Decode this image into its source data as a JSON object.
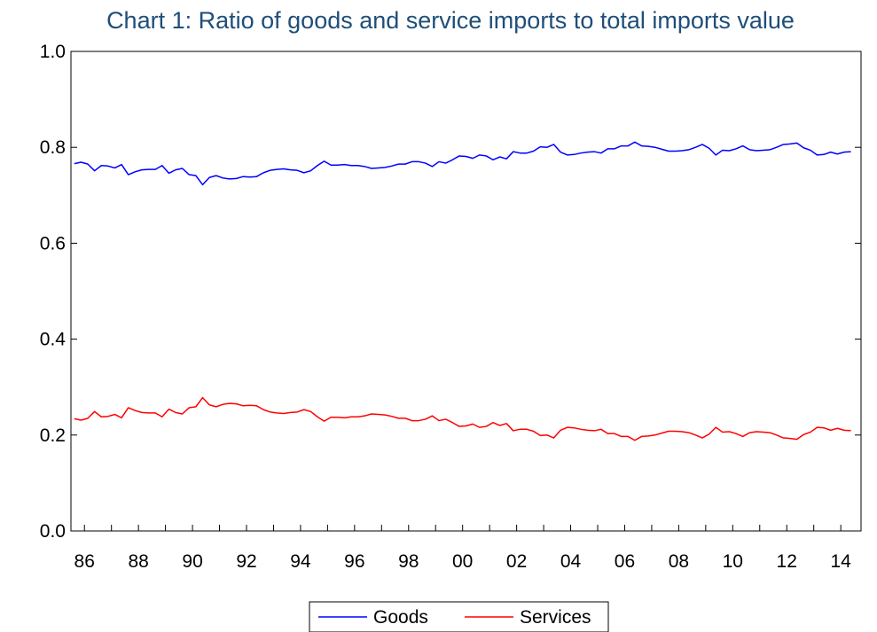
{
  "chart_data": {
    "type": "line",
    "title": "Chart 1: Ratio of goods and service imports to total imports value",
    "xlabel": "",
    "ylabel": "",
    "ylim": [
      0.0,
      1.0
    ],
    "y_ticks": [
      "0.0",
      "0.2",
      "0.4",
      "0.6",
      "0.8",
      "1.0"
    ],
    "y_tick_values": [
      0.0,
      0.2,
      0.4,
      0.6,
      0.8,
      1.0
    ],
    "x_tick_labels": [
      "86",
      "88",
      "90",
      "92",
      "94",
      "96",
      "98",
      "00",
      "02",
      "04",
      "06",
      "08",
      "10",
      "12",
      "14"
    ],
    "x_range": [
      1985.5,
      2014.75
    ],
    "frequency": "quarterly",
    "x_start": "1985Q3",
    "grid": false,
    "legend_position": "bottom-center",
    "series": [
      {
        "name": "Goods",
        "color": "#0000ff",
        "values": [
          0.766,
          0.769,
          0.765,
          0.751,
          0.762,
          0.761,
          0.757,
          0.764,
          0.743,
          0.749,
          0.753,
          0.754,
          0.754,
          0.762,
          0.746,
          0.753,
          0.756,
          0.743,
          0.741,
          0.722,
          0.737,
          0.741,
          0.736,
          0.734,
          0.735,
          0.739,
          0.738,
          0.739,
          0.747,
          0.752,
          0.754,
          0.755,
          0.753,
          0.752,
          0.747,
          0.751,
          0.762,
          0.771,
          0.763,
          0.763,
          0.764,
          0.762,
          0.762,
          0.76,
          0.756,
          0.757,
          0.758,
          0.761,
          0.765,
          0.765,
          0.77,
          0.77,
          0.767,
          0.76,
          0.77,
          0.767,
          0.774,
          0.782,
          0.781,
          0.777,
          0.784,
          0.782,
          0.774,
          0.78,
          0.776,
          0.791,
          0.788,
          0.788,
          0.792,
          0.801,
          0.8,
          0.806,
          0.79,
          0.784,
          0.785,
          0.788,
          0.79,
          0.791,
          0.788,
          0.797,
          0.797,
          0.803,
          0.803,
          0.811,
          0.803,
          0.802,
          0.8,
          0.796,
          0.792,
          0.792,
          0.793,
          0.795,
          0.8,
          0.806,
          0.798,
          0.784,
          0.794,
          0.793,
          0.797,
          0.803,
          0.795,
          0.793,
          0.794,
          0.795,
          0.8,
          0.806,
          0.807,
          0.809,
          0.799,
          0.794,
          0.784,
          0.785,
          0.79,
          0.786,
          0.79,
          0.791
        ]
      },
      {
        "name": "Services",
        "color": "#ff0000",
        "values": [
          0.234,
          0.231,
          0.235,
          0.249,
          0.238,
          0.239,
          0.243,
          0.236,
          0.257,
          0.251,
          0.247,
          0.246,
          0.246,
          0.238,
          0.254,
          0.247,
          0.244,
          0.257,
          0.259,
          0.278,
          0.263,
          0.259,
          0.264,
          0.266,
          0.265,
          0.261,
          0.262,
          0.261,
          0.253,
          0.248,
          0.246,
          0.245,
          0.247,
          0.248,
          0.253,
          0.249,
          0.238,
          0.229,
          0.237,
          0.237,
          0.236,
          0.238,
          0.238,
          0.24,
          0.244,
          0.243,
          0.242,
          0.239,
          0.235,
          0.235,
          0.23,
          0.23,
          0.233,
          0.24,
          0.23,
          0.233,
          0.226,
          0.218,
          0.219,
          0.223,
          0.216,
          0.218,
          0.226,
          0.22,
          0.224,
          0.209,
          0.212,
          0.212,
          0.208,
          0.199,
          0.2,
          0.194,
          0.21,
          0.216,
          0.215,
          0.212,
          0.21,
          0.209,
          0.212,
          0.203,
          0.203,
          0.197,
          0.197,
          0.189,
          0.197,
          0.198,
          0.2,
          0.204,
          0.208,
          0.208,
          0.207,
          0.205,
          0.2,
          0.194,
          0.202,
          0.216,
          0.206,
          0.207,
          0.203,
          0.197,
          0.205,
          0.207,
          0.206,
          0.205,
          0.2,
          0.194,
          0.193,
          0.191,
          0.201,
          0.206,
          0.216,
          0.215,
          0.21,
          0.214,
          0.21,
          0.209
        ]
      }
    ]
  }
}
